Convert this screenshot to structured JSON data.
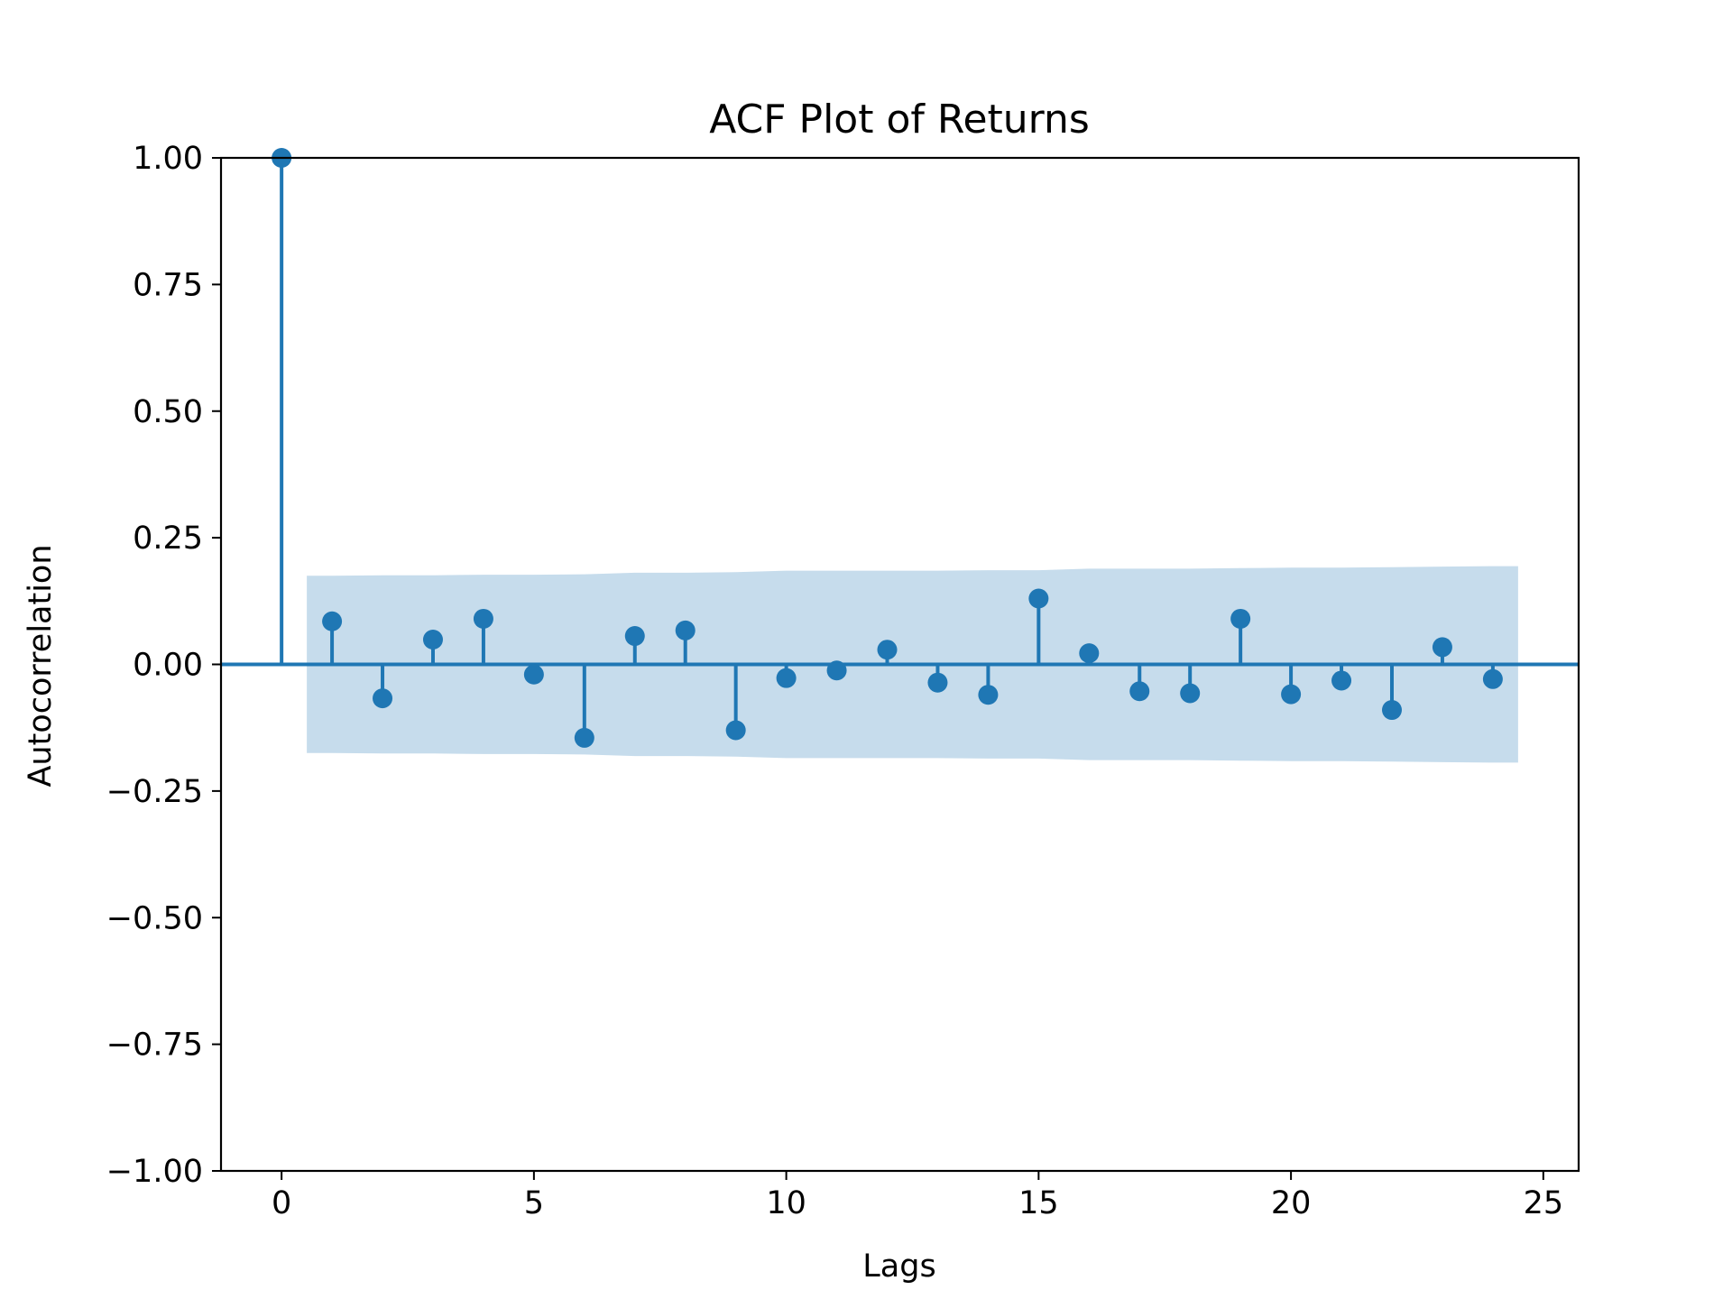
{
  "chart_data": {
    "type": "stem",
    "title": "ACF Plot of Returns",
    "xlabel": "Lags",
    "ylabel": "Autocorrelation",
    "xlim": [
      -1.2,
      25.7
    ],
    "ylim": [
      -1.0,
      1.0
    ],
    "xticks": [
      0,
      5,
      10,
      15,
      20,
      25
    ],
    "xtick_labels": [
      "0",
      "5",
      "10",
      "15",
      "20",
      "25"
    ],
    "yticks": [
      1.0,
      0.75,
      0.5,
      0.25,
      0.0,
      -0.25,
      -0.5,
      -0.75,
      -1.0
    ],
    "ytick_labels": [
      "1.00",
      "0.75",
      "0.50",
      "0.25",
      "0.00",
      "−0.25",
      "−0.50",
      "−0.75",
      "−1.00"
    ],
    "grid": false,
    "series": [
      {
        "lags": [
          0,
          1,
          2,
          3,
          4,
          5,
          6,
          7,
          8,
          9,
          10,
          11,
          12,
          13,
          14,
          15,
          16,
          17,
          18,
          19,
          20,
          21,
          22,
          23,
          24
        ],
        "values": [
          1.0,
          0.085,
          -0.067,
          0.049,
          0.09,
          -0.02,
          -0.145,
          0.056,
          0.067,
          -0.13,
          -0.027,
          -0.012,
          0.029,
          -0.036,
          -0.06,
          0.13,
          0.022,
          -0.053,
          -0.057,
          0.09,
          -0.059,
          -0.032,
          -0.09,
          0.034,
          -0.029
        ]
      }
    ],
    "confidence_band": {
      "x": [
        0.5,
        1,
        2,
        3,
        4,
        5,
        6,
        7,
        8,
        9,
        10,
        11,
        12,
        13,
        14,
        15,
        16,
        17,
        18,
        19,
        20,
        21,
        22,
        23,
        24,
        24.5
      ],
      "upper": [
        0.175,
        0.175,
        0.176,
        0.176,
        0.177,
        0.177,
        0.178,
        0.181,
        0.181,
        0.182,
        0.185,
        0.185,
        0.185,
        0.185,
        0.186,
        0.186,
        0.189,
        0.189,
        0.189,
        0.19,
        0.191,
        0.191,
        0.192,
        0.193,
        0.194,
        0.194
      ]
    },
    "colors": {
      "series": "#1f77b4",
      "band": "#c6dcec",
      "axes": "#000000"
    }
  }
}
